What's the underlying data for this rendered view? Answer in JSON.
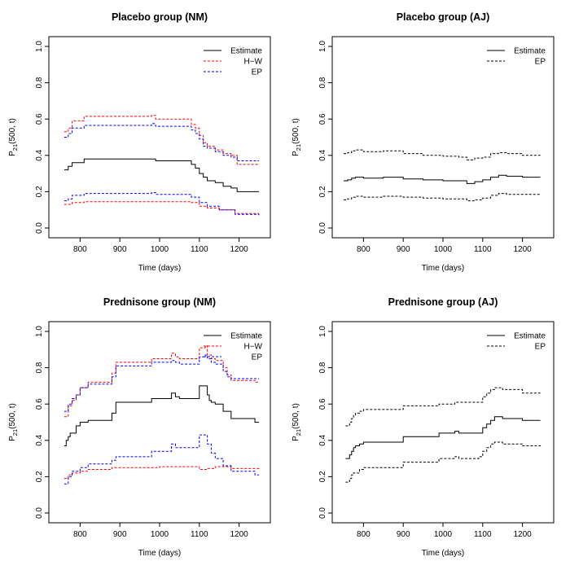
{
  "chart_data": [
    {
      "type": "line",
      "title": "Placebo group (NM)",
      "xlabel": "Time (days)",
      "ylabel": {
        "main": "P",
        "sub": "21",
        "rest": "(500, t)"
      },
      "xlim": [
        750,
        1250
      ],
      "ylim": [
        0,
        1
      ],
      "xticks": [
        800,
        900,
        1000,
        1100,
        1200
      ],
      "yticks": [
        0.0,
        0.2,
        0.4,
        0.6,
        0.8,
        1.0
      ],
      "ytick_labels": [
        "0.0",
        "0.2",
        "0.4",
        "0.6",
        "0.8",
        "1.0"
      ],
      "legend_position": "top-right",
      "series": [
        {
          "name": "Estimate",
          "color": "#000000",
          "dash": "solid",
          "x": [
            760,
            770,
            780,
            810,
            980,
            990,
            1080,
            1090,
            1100,
            1110,
            1120,
            1140,
            1160,
            1180,
            1195,
            1250
          ],
          "y": [
            0.32,
            0.34,
            0.36,
            0.38,
            0.38,
            0.37,
            0.35,
            0.33,
            0.3,
            0.28,
            0.26,
            0.25,
            0.23,
            0.22,
            0.2,
            0.2
          ]
        },
        {
          "name": "H−W",
          "color": "#ff0000",
          "dash": "dashed",
          "x": [
            760,
            770,
            780,
            810,
            980,
            990,
            1080,
            1090,
            1100,
            1110,
            1120,
            1140,
            1160,
            1180,
            1195,
            1250
          ],
          "y": [
            0.53,
            0.55,
            0.59,
            0.615,
            0.62,
            0.6,
            0.57,
            0.55,
            0.51,
            0.47,
            0.45,
            0.43,
            0.41,
            0.4,
            0.35,
            0.35
          ]
        },
        {
          "name": "H−W",
          "color": "#ff0000",
          "dash": "dashed",
          "x": [
            760,
            780,
            810,
            1080,
            1100,
            1120,
            1150,
            1190,
            1250
          ],
          "y": [
            0.13,
            0.14,
            0.145,
            0.14,
            0.12,
            0.11,
            0.1,
            0.08,
            0.08
          ]
        },
        {
          "name": "EP",
          "color": "#0000ff",
          "dash": "dashed",
          "x": [
            760,
            770,
            780,
            810,
            980,
            990,
            1080,
            1090,
            1100,
            1110,
            1120,
            1140,
            1160,
            1180,
            1195,
            1250
          ],
          "y": [
            0.5,
            0.52,
            0.55,
            0.565,
            0.575,
            0.56,
            0.54,
            0.52,
            0.49,
            0.45,
            0.44,
            0.42,
            0.4,
            0.39,
            0.37,
            0.37
          ]
        },
        {
          "name": "EP",
          "color": "#0000ff",
          "dash": "dashed",
          "x": [
            760,
            770,
            780,
            810,
            980,
            990,
            1080,
            1100,
            1120,
            1150,
            1190,
            1250
          ],
          "y": [
            0.15,
            0.16,
            0.18,
            0.19,
            0.195,
            0.185,
            0.17,
            0.14,
            0.12,
            0.1,
            0.075,
            0.07
          ]
        }
      ],
      "legend": [
        {
          "label": "Estimate",
          "color": "#000000",
          "dash": "solid"
        },
        {
          "label": "H−W",
          "color": "#ff0000",
          "dash": "dashed"
        },
        {
          "label": "EP",
          "color": "#0000ff",
          "dash": "dashed"
        }
      ]
    },
    {
      "type": "line",
      "title": "Placebo group (AJ)",
      "xlabel": "Time (days)",
      "ylabel": {
        "main": "P",
        "sub": "21",
        "rest": "(500, t)"
      },
      "xlim": [
        750,
        1250
      ],
      "ylim": [
        0,
        1
      ],
      "xticks": [
        800,
        900,
        1000,
        1100,
        1200
      ],
      "yticks": [
        0.0,
        0.2,
        0.4,
        0.6,
        0.8,
        1.0
      ],
      "ytick_labels": [
        "0.0",
        "0.2",
        "0.4",
        "0.6",
        "0.8",
        "1.0"
      ],
      "legend_position": "top-right",
      "series": [
        {
          "name": "Estimate",
          "color": "#000000",
          "dash": "solid",
          "x": [
            750,
            760,
            770,
            780,
            800,
            850,
            900,
            950,
            1000,
            1040,
            1060,
            1080,
            1100,
            1120,
            1140,
            1160,
            1200,
            1245
          ],
          "y": [
            0.26,
            0.265,
            0.275,
            0.28,
            0.275,
            0.28,
            0.27,
            0.265,
            0.26,
            0.26,
            0.245,
            0.255,
            0.265,
            0.28,
            0.29,
            0.285,
            0.28,
            0.28
          ]
        },
        {
          "name": "EP",
          "color": "#000000",
          "dash": "dashed",
          "x": [
            750,
            760,
            770,
            780,
            800,
            850,
            900,
            950,
            1000,
            1040,
            1060,
            1080,
            1100,
            1120,
            1140,
            1160,
            1200,
            1245
          ],
          "y": [
            0.41,
            0.415,
            0.425,
            0.43,
            0.42,
            0.425,
            0.41,
            0.4,
            0.395,
            0.39,
            0.375,
            0.385,
            0.39,
            0.41,
            0.415,
            0.41,
            0.4,
            0.4
          ]
        },
        {
          "name": "EP",
          "color": "#000000",
          "dash": "dashed",
          "x": [
            750,
            760,
            770,
            780,
            800,
            850,
            900,
            950,
            1000,
            1040,
            1060,
            1080,
            1100,
            1120,
            1140,
            1160,
            1200,
            1245
          ],
          "y": [
            0.155,
            0.16,
            0.17,
            0.175,
            0.17,
            0.175,
            0.17,
            0.165,
            0.16,
            0.16,
            0.15,
            0.155,
            0.165,
            0.18,
            0.19,
            0.185,
            0.185,
            0.19
          ]
        }
      ],
      "legend": [
        {
          "label": "Estimate",
          "color": "#000000",
          "dash": "solid"
        },
        {
          "label": "EP",
          "color": "#000000",
          "dash": "dashed"
        }
      ]
    },
    {
      "type": "line",
      "title": "Prednisone group (NM)",
      "xlabel": "Time (days)",
      "ylabel": {
        "main": "P",
        "sub": "21",
        "rest": "(500, t)"
      },
      "xlim": [
        750,
        1250
      ],
      "ylim": [
        0,
        1
      ],
      "xticks": [
        800,
        900,
        1000,
        1100,
        1200
      ],
      "yticks": [
        0.0,
        0.2,
        0.4,
        0.6,
        0.8,
        1.0
      ],
      "ytick_labels": [
        "0.0",
        "0.2",
        "0.4",
        "0.6",
        "0.8",
        "1.0"
      ],
      "legend_position": "top-right",
      "series": [
        {
          "name": "Estimate",
          "color": "#000000",
          "dash": "solid",
          "x": [
            760,
            765,
            770,
            775,
            780,
            790,
            800,
            820,
            860,
            880,
            890,
            980,
            1030,
            1040,
            1050,
            1100,
            1115,
            1120,
            1125,
            1130,
            1140,
            1160,
            1180,
            1240,
            1250
          ],
          "y": [
            0.37,
            0.4,
            0.42,
            0.44,
            0.44,
            0.48,
            0.5,
            0.51,
            0.51,
            0.55,
            0.61,
            0.63,
            0.66,
            0.64,
            0.63,
            0.7,
            0.7,
            0.65,
            0.62,
            0.61,
            0.6,
            0.56,
            0.52,
            0.5,
            0.5
          ]
        },
        {
          "name": "H−W",
          "color": "#ff0000",
          "dash": "dashed",
          "x": [
            760,
            770,
            780,
            790,
            800,
            820,
            860,
            880,
            890,
            980,
            1030,
            1040,
            1050,
            1100,
            1115,
            1120,
            1130,
            1140,
            1160,
            1170,
            1180,
            1240,
            1250
          ],
          "y": [
            0.53,
            0.59,
            0.62,
            0.65,
            0.69,
            0.72,
            0.72,
            0.77,
            0.83,
            0.85,
            0.88,
            0.86,
            0.85,
            0.91,
            0.92,
            0.87,
            0.85,
            0.84,
            0.8,
            0.76,
            0.73,
            0.72,
            0.72
          ]
        },
        {
          "name": "H−W",
          "color": "#ff0000",
          "dash": "dashed",
          "x": [
            760,
            770,
            780,
            800,
            820,
            880,
            1000,
            1100,
            1120,
            1140,
            1180,
            1250
          ],
          "y": [
            0.19,
            0.21,
            0.22,
            0.23,
            0.24,
            0.25,
            0.255,
            0.24,
            0.245,
            0.255,
            0.245,
            0.24
          ]
        },
        {
          "name": "EP",
          "color": "#0000ff",
          "dash": "dashed",
          "x": [
            760,
            770,
            780,
            790,
            800,
            820,
            860,
            880,
            890,
            980,
            1030,
            1040,
            1050,
            1100,
            1115,
            1120,
            1130,
            1140,
            1160,
            1170,
            1180,
            1240,
            1250
          ],
          "y": [
            0.56,
            0.6,
            0.63,
            0.65,
            0.69,
            0.71,
            0.71,
            0.75,
            0.81,
            0.83,
            0.84,
            0.83,
            0.82,
            0.86,
            0.87,
            0.85,
            0.83,
            0.82,
            0.78,
            0.75,
            0.74,
            0.74,
            0.74
          ]
        },
        {
          "name": "EP",
          "color": "#0000ff",
          "dash": "dashed",
          "x": [
            760,
            770,
            780,
            800,
            820,
            860,
            880,
            890,
            980,
            1030,
            1040,
            1050,
            1100,
            1115,
            1120,
            1130,
            1140,
            1160,
            1180,
            1240,
            1250
          ],
          "y": [
            0.16,
            0.2,
            0.23,
            0.25,
            0.27,
            0.27,
            0.29,
            0.31,
            0.34,
            0.38,
            0.36,
            0.36,
            0.43,
            0.43,
            0.38,
            0.33,
            0.3,
            0.26,
            0.23,
            0.21,
            0.21
          ]
        }
      ],
      "legend": [
        {
          "label": "Estimate",
          "color": "#000000",
          "dash": "solid"
        },
        {
          "label": "H−W",
          "color": "#ff0000",
          "dash": "dashed"
        },
        {
          "label": "EP",
          "color": "#0000ff",
          "dash": "dashed"
        }
      ]
    },
    {
      "type": "line",
      "title": "Prednisone group (AJ)",
      "xlabel": "Time (days)",
      "ylabel": {
        "main": "P",
        "sub": "21",
        "rest": "(500, t)"
      },
      "xlim": [
        750,
        1250
      ],
      "ylim": [
        0,
        1
      ],
      "xticks": [
        800,
        900,
        1000,
        1100,
        1200
      ],
      "yticks": [
        0.0,
        0.2,
        0.4,
        0.6,
        0.8,
        1.0
      ],
      "ytick_labels": [
        "0.0",
        "0.2",
        "0.4",
        "0.6",
        "0.8",
        "1.0"
      ],
      "legend_position": "top-right",
      "series": [
        {
          "name": "Estimate",
          "color": "#000000",
          "dash": "solid",
          "x": [
            755,
            765,
            770,
            775,
            780,
            790,
            800,
            820,
            900,
            950,
            990,
            1030,
            1040,
            1090,
            1100,
            1110,
            1120,
            1130,
            1150,
            1200,
            1245
          ],
          "y": [
            0.3,
            0.32,
            0.34,
            0.36,
            0.37,
            0.38,
            0.39,
            0.39,
            0.42,
            0.42,
            0.44,
            0.45,
            0.44,
            0.44,
            0.47,
            0.49,
            0.51,
            0.53,
            0.52,
            0.51,
            0.51
          ]
        },
        {
          "name": "EP",
          "color": "#000000",
          "dash": "dashed",
          "x": [
            755,
            765,
            770,
            775,
            780,
            790,
            800,
            820,
            900,
            950,
            990,
            1030,
            1040,
            1090,
            1100,
            1110,
            1120,
            1130,
            1150,
            1200,
            1245
          ],
          "y": [
            0.48,
            0.5,
            0.52,
            0.54,
            0.55,
            0.56,
            0.57,
            0.57,
            0.59,
            0.59,
            0.6,
            0.61,
            0.61,
            0.61,
            0.64,
            0.66,
            0.68,
            0.69,
            0.68,
            0.66,
            0.66
          ]
        },
        {
          "name": "EP",
          "color": "#000000",
          "dash": "dashed",
          "x": [
            755,
            765,
            770,
            775,
            780,
            790,
            800,
            820,
            900,
            950,
            990,
            1030,
            1040,
            1090,
            1100,
            1110,
            1120,
            1130,
            1150,
            1200,
            1245
          ],
          "y": [
            0.17,
            0.19,
            0.21,
            0.22,
            0.22,
            0.24,
            0.25,
            0.25,
            0.28,
            0.28,
            0.3,
            0.31,
            0.3,
            0.31,
            0.34,
            0.36,
            0.38,
            0.39,
            0.38,
            0.37,
            0.38
          ]
        }
      ],
      "legend": [
        {
          "label": "Estimate",
          "color": "#000000",
          "dash": "solid"
        },
        {
          "label": "EP",
          "color": "#000000",
          "dash": "dashed"
        }
      ]
    }
  ]
}
